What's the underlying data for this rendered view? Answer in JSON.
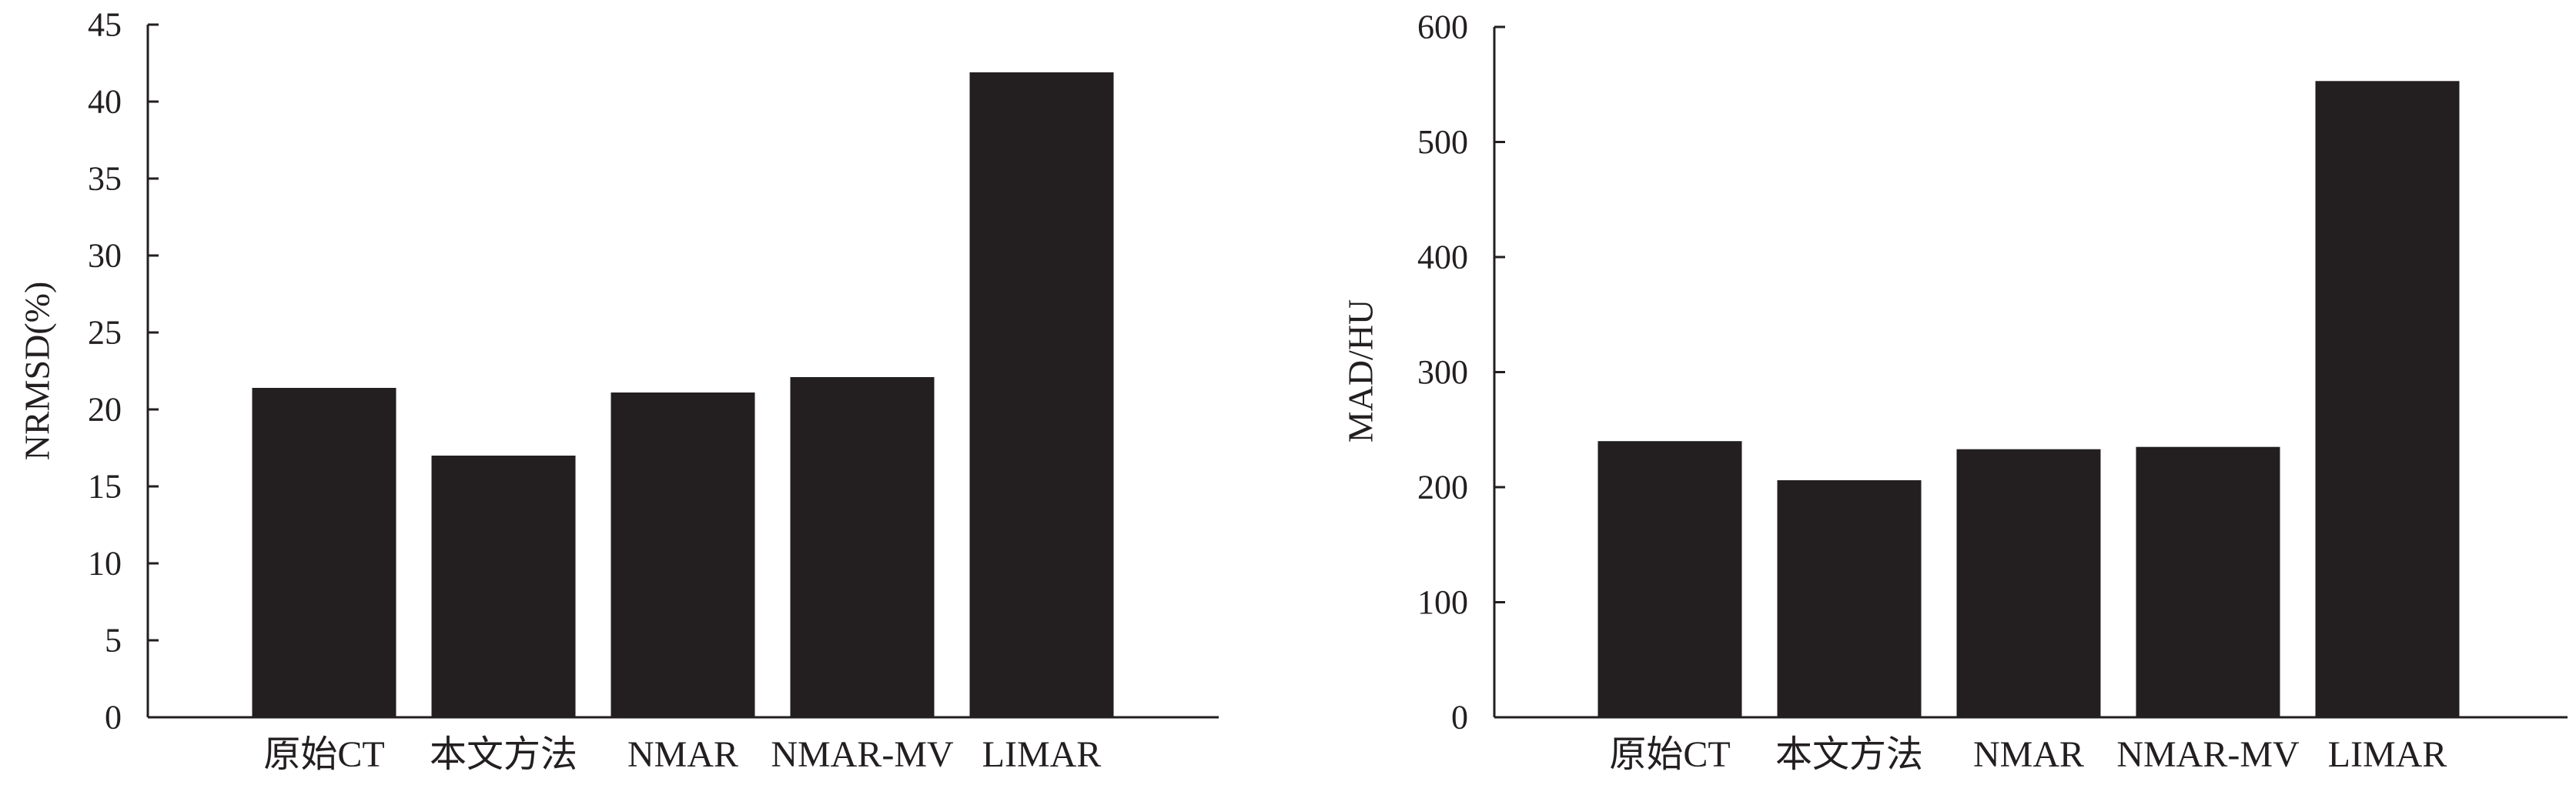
{
  "colors": {
    "bar": "#231f20",
    "axis": "#231f20",
    "text": "#231f20",
    "background": "#ffffff"
  },
  "chart_data": [
    {
      "type": "bar",
      "title": "",
      "xlabel": "",
      "ylabel": "NRMSD(%)",
      "ylim": [
        0,
        45
      ],
      "yticks": [
        0,
        5,
        10,
        15,
        20,
        25,
        30,
        35,
        40,
        45
      ],
      "categories": [
        "原始CT",
        "本文方法",
        "NMAR",
        "NMAR-MV",
        "LIMAR"
      ],
      "values": [
        21.4,
        17.0,
        21.1,
        22.1,
        41.9
      ],
      "grid": false,
      "legend": "none"
    },
    {
      "type": "bar",
      "title": "",
      "xlabel": "",
      "ylabel": "MAD/HU",
      "ylim": [
        0,
        600
      ],
      "yticks": [
        0,
        100,
        200,
        300,
        400,
        500,
        600
      ],
      "categories": [
        "原始CT",
        "本文方法",
        "NMAR",
        "NMAR-MV",
        "LIMAR"
      ],
      "values": [
        240,
        206,
        233,
        235,
        553
      ],
      "grid": false,
      "legend": "none"
    }
  ]
}
